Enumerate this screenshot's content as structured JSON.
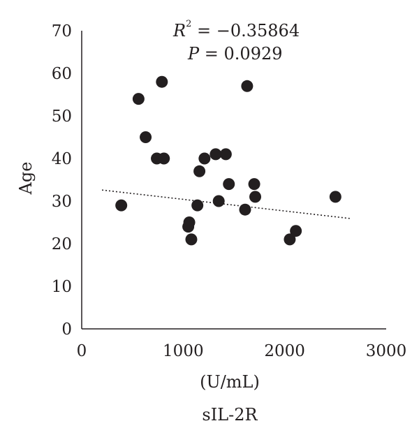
{
  "chart_data": {
    "type": "scatter",
    "title": "",
    "xlabel": "(U/mL)",
    "xlabel2": "sIL-2R",
    "ylabel": "Age",
    "xlim": [
      0,
      3000
    ],
    "ylim": [
      0,
      70
    ],
    "x_ticks": [
      "0",
      "1000",
      "2000",
      "3000"
    ],
    "y_ticks": [
      "0",
      "10",
      "20",
      "30",
      "40",
      "50",
      "60",
      "70"
    ],
    "grid": false,
    "legend": "none",
    "marker_color": "#231f20",
    "annotations": {
      "r2_label": "R",
      "r2_sup": "2",
      "r2_value": " = −0.35864",
      "p_label": "P",
      "p_value": " = 0.0929"
    },
    "trendline": {
      "style": "dotted",
      "x": [
        200,
        2650
      ],
      "y": [
        32.6,
        25.9
      ]
    },
    "points": [
      {
        "x": 390,
        "y": 29
      },
      {
        "x": 560,
        "y": 54
      },
      {
        "x": 630,
        "y": 45
      },
      {
        "x": 740,
        "y": 40
      },
      {
        "x": 790,
        "y": 58
      },
      {
        "x": 810,
        "y": 40
      },
      {
        "x": 1050,
        "y": 24
      },
      {
        "x": 1060,
        "y": 25
      },
      {
        "x": 1080,
        "y": 21
      },
      {
        "x": 1140,
        "y": 29
      },
      {
        "x": 1160,
        "y": 37
      },
      {
        "x": 1210,
        "y": 40
      },
      {
        "x": 1320,
        "y": 41
      },
      {
        "x": 1350,
        "y": 30
      },
      {
        "x": 1420,
        "y": 41
      },
      {
        "x": 1450,
        "y": 34
      },
      {
        "x": 1610,
        "y": 28
      },
      {
        "x": 1630,
        "y": 57
      },
      {
        "x": 1700,
        "y": 34
      },
      {
        "x": 1710,
        "y": 31
      },
      {
        "x": 2050,
        "y": 21
      },
      {
        "x": 2110,
        "y": 23
      },
      {
        "x": 2500,
        "y": 31
      }
    ]
  }
}
